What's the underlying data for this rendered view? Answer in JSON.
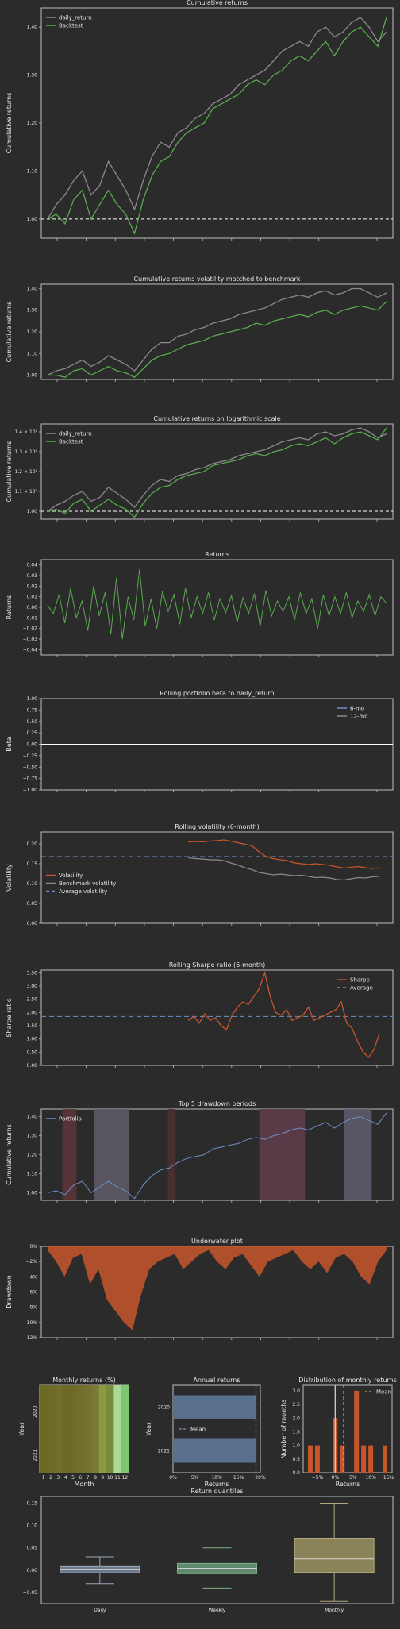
{
  "colors": {
    "background": "#2b2b2b",
    "grid": "#bdbdbd",
    "green": "#5aa94f",
    "gray": "#8a8a8a",
    "orange": "#c8562b",
    "blue": "#6f90c5",
    "drawdown": "#c8562b"
  },
  "chart_data": [
    {
      "type": "line",
      "title": "Cumulative returns",
      "ylabel": "Cumulative returns",
      "ylim": [
        0.96,
        1.44
      ],
      "yticks": [
        "1.00",
        "1.10",
        "1.20",
        "1.30",
        "1.40"
      ],
      "ytick_values": [
        1.0,
        1.1,
        1.2,
        1.3,
        1.4
      ],
      "legend": {
        "position": "top-left",
        "entries": [
          "daily_return",
          "Backtest"
        ]
      },
      "series": [
        {
          "name": "daily_return",
          "color": "gray",
          "values": [
            1.0,
            1.03,
            1.05,
            1.08,
            1.1,
            1.05,
            1.07,
            1.12,
            1.09,
            1.06,
            1.02,
            1.08,
            1.13,
            1.16,
            1.15,
            1.18,
            1.19,
            1.21,
            1.22,
            1.24,
            1.25,
            1.26,
            1.28,
            1.29,
            1.3,
            1.31,
            1.33,
            1.35,
            1.36,
            1.37,
            1.36,
            1.39,
            1.4,
            1.38,
            1.39,
            1.41,
            1.42,
            1.4,
            1.37,
            1.39
          ]
        },
        {
          "name": "Backtest",
          "color": "green",
          "values": [
            1.0,
            1.01,
            0.99,
            1.04,
            1.06,
            1.0,
            1.03,
            1.06,
            1.03,
            1.01,
            0.97,
            1.04,
            1.09,
            1.12,
            1.13,
            1.16,
            1.18,
            1.19,
            1.2,
            1.23,
            1.24,
            1.25,
            1.26,
            1.28,
            1.29,
            1.28,
            1.3,
            1.31,
            1.33,
            1.34,
            1.33,
            1.35,
            1.37,
            1.34,
            1.37,
            1.39,
            1.4,
            1.38,
            1.36,
            1.42
          ]
        }
      ],
      "baseline": 1.0
    },
    {
      "type": "line",
      "title": "Cumulative returns volatility matched to benchmark",
      "ylabel": "Cumulative returns",
      "ylim": [
        0.98,
        1.42
      ],
      "yticks": [
        "1.00",
        "1.10",
        "1.20",
        "1.30",
        "1.40"
      ],
      "ytick_values": [
        1.0,
        1.1,
        1.2,
        1.3,
        1.4
      ],
      "series": [
        {
          "name": "",
          "color": "gray",
          "values": [
            1.0,
            1.02,
            1.03,
            1.05,
            1.07,
            1.04,
            1.06,
            1.09,
            1.07,
            1.05,
            1.02,
            1.07,
            1.12,
            1.15,
            1.15,
            1.18,
            1.19,
            1.21,
            1.22,
            1.24,
            1.25,
            1.26,
            1.28,
            1.29,
            1.3,
            1.31,
            1.33,
            1.35,
            1.36,
            1.37,
            1.36,
            1.38,
            1.39,
            1.37,
            1.38,
            1.4,
            1.4,
            1.38,
            1.36,
            1.38
          ]
        },
        {
          "name": "",
          "color": "green",
          "values": [
            1.0,
            1.0,
            0.99,
            1.02,
            1.03,
            1.0,
            1.02,
            1.04,
            1.02,
            1.01,
            0.99,
            1.03,
            1.07,
            1.09,
            1.1,
            1.12,
            1.14,
            1.15,
            1.16,
            1.18,
            1.19,
            1.2,
            1.21,
            1.22,
            1.24,
            1.23,
            1.25,
            1.26,
            1.27,
            1.28,
            1.27,
            1.29,
            1.3,
            1.28,
            1.3,
            1.31,
            1.32,
            1.31,
            1.3,
            1.34
          ]
        }
      ],
      "baseline": 1.0
    },
    {
      "type": "line",
      "title": "Cumulative returns on logarithmic scale",
      "ylabel": "Cumulative returns",
      "ylim": [
        0.96,
        1.44
      ],
      "yticks": [
        "1.00",
        "1.1 × 10⁰",
        "1.2 × 10⁰",
        "1.3 × 10⁰",
        "1.4 × 10⁰"
      ],
      "ytick_values": [
        1.0,
        1.1,
        1.2,
        1.3,
        1.4
      ],
      "legend": {
        "position": "top-left",
        "entries": [
          "daily_return",
          "Backtest"
        ]
      },
      "series": [
        {
          "name": "daily_return",
          "color": "gray",
          "values": [
            1.0,
            1.03,
            1.05,
            1.08,
            1.1,
            1.05,
            1.07,
            1.12,
            1.09,
            1.06,
            1.02,
            1.08,
            1.13,
            1.16,
            1.15,
            1.18,
            1.19,
            1.21,
            1.22,
            1.24,
            1.25,
            1.26,
            1.28,
            1.29,
            1.3,
            1.31,
            1.33,
            1.35,
            1.36,
            1.37,
            1.36,
            1.39,
            1.4,
            1.38,
            1.39,
            1.41,
            1.42,
            1.4,
            1.37,
            1.39
          ]
        },
        {
          "name": "Backtest",
          "color": "green",
          "values": [
            1.0,
            1.01,
            0.99,
            1.04,
            1.06,
            1.0,
            1.03,
            1.06,
            1.03,
            1.01,
            0.97,
            1.04,
            1.09,
            1.12,
            1.13,
            1.16,
            1.18,
            1.19,
            1.2,
            1.23,
            1.24,
            1.25,
            1.26,
            1.28,
            1.29,
            1.28,
            1.3,
            1.31,
            1.33,
            1.34,
            1.33,
            1.35,
            1.37,
            1.34,
            1.37,
            1.39,
            1.4,
            1.38,
            1.36,
            1.42
          ]
        }
      ],
      "baseline": 1.0
    },
    {
      "type": "line",
      "title": "Returns",
      "ylabel": "Returns",
      "ylim": [
        -0.045,
        0.045
      ],
      "yticks": [
        "0.04",
        "0.03",
        "0.02",
        "0.01",
        "0.00",
        "−0.01",
        "−0.02",
        "−0.03",
        "−0.04"
      ],
      "ytick_values": [
        0.04,
        0.03,
        0.02,
        0.01,
        0.0,
        -0.01,
        -0.02,
        -0.03,
        -0.04
      ],
      "series": [
        {
          "name": "",
          "color": "green",
          "values": [
            0.002,
            -0.006,
            0.012,
            -0.015,
            0.018,
            -0.01,
            0.006,
            -0.022,
            0.02,
            -0.008,
            0.014,
            -0.025,
            0.028,
            -0.03,
            0.01,
            -0.012,
            0.036,
            -0.018,
            0.008,
            -0.02,
            0.015,
            -0.004,
            0.012,
            -0.016,
            0.018,
            -0.01,
            0.01,
            -0.006,
            0.014,
            -0.012,
            0.008,
            -0.005,
            0.011,
            -0.014,
            0.009,
            -0.006,
            0.013,
            -0.018,
            0.016,
            -0.008,
            0.006,
            -0.004,
            0.01,
            -0.012,
            0.014,
            -0.006,
            0.008,
            -0.02,
            0.012,
            -0.008,
            0.01,
            -0.006,
            0.014,
            -0.01,
            0.006,
            -0.004,
            0.012,
            -0.008,
            0.01,
            0.004
          ]
        }
      ]
    },
    {
      "type": "line",
      "title": "Rolling portfolio beta to daily_return",
      "ylabel": "Beta",
      "ylim": [
        -1.0,
        1.0
      ],
      "yticks": [
        "1.00",
        "0.75",
        "0.50",
        "0.25",
        "0.00",
        "−0.25",
        "−0.50",
        "−0.75",
        "−1.00"
      ],
      "ytick_values": [
        1.0,
        0.75,
        0.5,
        0.25,
        0.0,
        -0.25,
        -0.5,
        -0.75,
        -1.0
      ],
      "legend": {
        "position": "top-right",
        "entries": [
          "6-mo",
          "12-mo"
        ]
      },
      "baseline": 0.0
    },
    {
      "type": "line",
      "title": "Rolling volatility (6-month)",
      "ylabel": "Volatility",
      "ylim": [
        0.0,
        0.23
      ],
      "yticks": [
        "0.20",
        "0.15",
        "0.10",
        "0.05",
        "0.00"
      ],
      "ytick_values": [
        0.2,
        0.15,
        0.1,
        0.05,
        0.0
      ],
      "legend": {
        "position": "center-left",
        "entries": [
          "Volatility",
          "Benchmark volatility",
          "Average volatility"
        ]
      },
      "series": [
        {
          "name": "Volatility",
          "color": "orange",
          "values": [
            0.205,
            0.206,
            0.205,
            0.207,
            0.208,
            0.21,
            0.207,
            0.203,
            0.199,
            0.195,
            0.18,
            0.168,
            0.163,
            0.16,
            0.158,
            0.152,
            0.15,
            0.148,
            0.15,
            0.148,
            0.146,
            0.142,
            0.139,
            0.141,
            0.143,
            0.14,
            0.138,
            0.14
          ]
        },
        {
          "name": "Benchmark volatility",
          "color": "gray",
          "values": [
            0.165,
            0.163,
            0.162,
            0.16,
            0.16,
            0.158,
            0.152,
            0.147,
            0.14,
            0.135,
            0.128,
            0.125,
            0.122,
            0.124,
            0.122,
            0.12,
            0.121,
            0.118,
            0.115,
            0.116,
            0.114,
            0.11,
            0.109,
            0.112,
            0.115,
            0.114,
            0.117,
            0.118
          ]
        }
      ],
      "average": 0.168
    },
    {
      "type": "line",
      "title": "Rolling Sharpe ratio (6-month)",
      "ylabel": "Sharpe ratio",
      "ylim": [
        0.0,
        3.6
      ],
      "yticks": [
        "3.50",
        "3.00",
        "2.50",
        "2.00",
        "1.50",
        "1.00",
        "0.50",
        "0.00"
      ],
      "ytick_values": [
        3.5,
        3.0,
        2.5,
        2.0,
        1.5,
        1.0,
        0.5,
        0.0
      ],
      "legend": {
        "position": "top-right",
        "entries": [
          "Sharpe",
          "Average"
        ]
      },
      "series": [
        {
          "name": "Sharpe",
          "color": "orange",
          "values": [
            1.7,
            1.85,
            1.6,
            1.95,
            1.7,
            1.8,
            1.5,
            1.35,
            1.9,
            2.2,
            2.4,
            2.3,
            2.6,
            2.9,
            3.5,
            2.6,
            2.0,
            1.9,
            2.1,
            1.7,
            1.8,
            1.9,
            2.2,
            1.7,
            1.8,
            1.9,
            2.0,
            2.1,
            2.4,
            1.6,
            1.4,
            0.9,
            0.5,
            0.3,
            0.6,
            1.2
          ]
        }
      ],
      "average": 1.85
    },
    {
      "type": "line",
      "title": "Top 5 drawdown periods",
      "ylabel": "Cumulative returns",
      "ylim": [
        0.96,
        1.44
      ],
      "yticks": [
        "1.40",
        "1.30",
        "1.20",
        "1.10",
        "1.00"
      ],
      "ytick_values": [
        1.4,
        1.3,
        1.2,
        1.1,
        1.0
      ],
      "legend": {
        "position": "top-left",
        "entries": [
          "Portfolio"
        ]
      },
      "series": [
        {
          "name": "Portfolio",
          "color": "blue",
          "values": [
            1.0,
            1.01,
            0.99,
            1.04,
            1.06,
            1.0,
            1.03,
            1.06,
            1.03,
            1.01,
            0.97,
            1.04,
            1.09,
            1.12,
            1.13,
            1.16,
            1.18,
            1.19,
            1.2,
            1.23,
            1.24,
            1.25,
            1.26,
            1.28,
            1.29,
            1.28,
            1.3,
            1.31,
            1.33,
            1.34,
            1.33,
            1.35,
            1.37,
            1.34,
            1.37,
            1.39,
            1.4,
            1.38,
            1.36,
            1.42
          ]
        }
      ]
    },
    {
      "type": "area",
      "title": "Underwater plot",
      "ylabel": "Drawdown",
      "ylim": [
        -0.12,
        0.0
      ],
      "yticks": [
        "0%",
        "−2%",
        "−4%",
        "−6%",
        "−8%",
        "−10%",
        "−12%"
      ],
      "ytick_values": [
        0.0,
        -0.02,
        -0.04,
        -0.06,
        -0.08,
        -0.1,
        -0.12
      ],
      "values": [
        -0.005,
        -0.02,
        -0.04,
        -0.015,
        -0.01,
        -0.05,
        -0.03,
        -0.07,
        -0.085,
        -0.1,
        -0.11,
        -0.065,
        -0.03,
        -0.02,
        -0.015,
        -0.01,
        -0.03,
        -0.02,
        -0.01,
        -0.005,
        -0.02,
        -0.03,
        -0.015,
        -0.01,
        -0.025,
        -0.04,
        -0.02,
        -0.015,
        -0.01,
        -0.005,
        -0.02,
        -0.03,
        -0.02,
        -0.035,
        -0.015,
        -0.01,
        -0.02,
        -0.04,
        -0.05,
        -0.02,
        -0.005
      ]
    },
    {
      "type": "heatmap",
      "title": "Monthly returns (%)",
      "ylabel": "Year",
      "xlabel": "Month",
      "years": [
        "2020",
        "2021"
      ],
      "months": [
        "1",
        "2",
        "3",
        "4",
        "5",
        "6",
        "7",
        "8",
        "9",
        "10",
        "11",
        "12"
      ]
    },
    {
      "type": "bar",
      "title": "Annual returns",
      "ylabel": "Year",
      "xlabel": "Returns",
      "categories": [
        "2020",
        "2021"
      ],
      "values": [
        0.19,
        0.19
      ],
      "xticks": [
        "0%",
        "5%",
        "10%",
        "15%",
        "20%"
      ],
      "xtick_values": [
        0.0,
        0.05,
        0.1,
        0.15,
        0.2
      ],
      "xlim": [
        0.0,
        0.2
      ],
      "mean": 0.19,
      "legend": {
        "position": "center-left",
        "entries": [
          "Mean"
        ]
      }
    },
    {
      "type": "bar",
      "title": "Distribution of monthly returns",
      "ylabel": "Number of months",
      "xlabel": "Returns",
      "xticks": [
        "−5%",
        "0%",
        "5%",
        "10%",
        "15%"
      ],
      "xtick_values": [
        -0.05,
        0.0,
        0.05,
        0.1,
        0.15
      ],
      "yticks": [
        "0.0",
        "0.5",
        "1.0",
        "1.5",
        "2.0",
        "2.5",
        "3.0"
      ],
      "ytick_values": [
        0.0,
        0.5,
        1.0,
        1.5,
        2.0,
        2.5,
        3.0
      ],
      "bins": [
        {
          "x": -0.07,
          "count": 1
        },
        {
          "x": -0.05,
          "count": 1
        },
        {
          "x": 0.0,
          "count": 2
        },
        {
          "x": 0.02,
          "count": 1
        },
        {
          "x": 0.06,
          "count": 3
        },
        {
          "x": 0.08,
          "count": 1
        },
        {
          "x": 0.1,
          "count": 1
        },
        {
          "x": 0.14,
          "count": 1
        }
      ],
      "mean": 0.024,
      "legend": {
        "position": "top-right",
        "entries": [
          "Mean"
        ]
      }
    },
    {
      "type": "box",
      "title": "Return quantiles",
      "yticks": [
        "0.15",
        "0.10",
        "0.05",
        "0.00",
        "−0.05"
      ],
      "ytick_values": [
        0.15,
        0.1,
        0.05,
        0.0,
        -0.05
      ],
      "categories": [
        "Daily",
        "Weekly",
        "Monthly"
      ],
      "boxes": [
        {
          "min": -0.03,
          "q1": -0.006,
          "median": 0.001,
          "q3": 0.008,
          "max": 0.03
        },
        {
          "min": -0.04,
          "q1": -0.008,
          "median": 0.004,
          "q3": 0.015,
          "max": 0.05
        },
        {
          "min": -0.07,
          "q1": -0.005,
          "median": 0.025,
          "q3": 0.07,
          "max": 0.15
        }
      ]
    }
  ]
}
